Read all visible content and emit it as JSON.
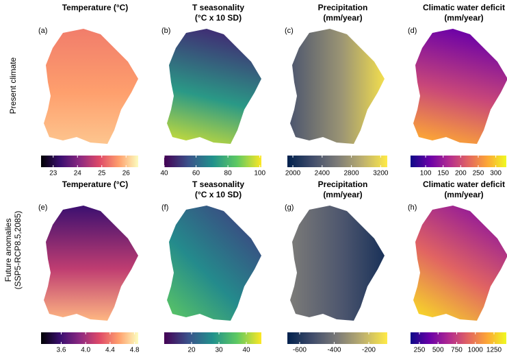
{
  "row_labels": [
    [
      "Present climate"
    ],
    [
      "Future anomalies",
      "(SSP5-RCP8.5,2085)"
    ]
  ],
  "panels": [
    {
      "title": [
        "Temperature (°C)"
      ],
      "letter": "(a)",
      "colorbar": {
        "lim": [
          22.5,
          26.5
        ],
        "ticks": [
          23,
          24,
          25,
          26
        ],
        "colors": [
          "#000004",
          "#3b0f70",
          "#8c2981",
          "#de4968",
          "#fe9f6d",
          "#fcfdbf"
        ]
      }
    },
    {
      "title": [
        "T seasonality",
        "(°C x 10 SD)"
      ],
      "letter": "(b)",
      "colorbar": {
        "lim": [
          40,
          101
        ],
        "ticks": [
          40,
          60,
          80,
          100
        ],
        "colors": [
          "#440154",
          "#3b528b",
          "#21918c",
          "#5ec962",
          "#fde725"
        ]
      }
    },
    {
      "title": [
        "Precipitation",
        "(mm/year)"
      ],
      "letter": "(c)",
      "colorbar": {
        "lim": [
          1925,
          3290
        ],
        "ticks": [
          2000,
          2400,
          2800,
          3200
        ],
        "colors": [
          "#00204d",
          "#414d6b",
          "#7c7b78",
          "#bcaf6f",
          "#ffea46"
        ]
      }
    },
    {
      "title": [
        "Climatic water deficit",
        "(mm/year)"
      ],
      "letter": "(d)",
      "colorbar": {
        "lim": [
          57,
          330
        ],
        "ticks": [
          100,
          150,
          200,
          250,
          300
        ],
        "colors": [
          "#0d0887",
          "#6a00a8",
          "#b12a90",
          "#e16462",
          "#fca636",
          "#f0f921"
        ]
      }
    },
    {
      "title": [
        "Temperature (°C)"
      ],
      "letter": "(e)",
      "colorbar": {
        "lim": [
          3.27,
          4.86
        ],
        "ticks": [
          3.6,
          {
            "value": 4,
            "label": "4.0"
          },
          4.4,
          4.8
        ],
        "colors": [
          "#000004",
          "#3b0f70",
          "#8c2981",
          "#de4968",
          "#fe9f6d",
          "#fcfdbf"
        ]
      }
    },
    {
      "title": [
        "T seasonality",
        "(°C x 10 SD)"
      ],
      "letter": "(f)",
      "colorbar": {
        "lim": [
          10,
          45.5
        ],
        "ticks": [
          20,
          30,
          40
        ],
        "colors": [
          "#440154",
          "#3b528b",
          "#21918c",
          "#5ec962",
          "#fde725"
        ]
      }
    },
    {
      "title": [
        "Precipitation",
        "(mm/year)"
      ],
      "letter": "(g)",
      "colorbar": {
        "lim": [
          -671,
          -93
        ],
        "ticks": [
          -600,
          -400,
          -200
        ],
        "colors": [
          "#00204d",
          "#414d6b",
          "#7c7b78",
          "#bcaf6f",
          "#ffea46"
        ]
      }
    },
    {
      "title": [
        "Climatic water deficit",
        "(mm/year)"
      ],
      "letter": "(h)",
      "colorbar": {
        "lim": [
          131,
          1415
        ],
        "ticks": [
          250,
          500,
          750,
          1000,
          1250
        ],
        "colors": [
          "#0d0887",
          "#6a00a8",
          "#b12a90",
          "#e16462",
          "#fca636",
          "#f0f921"
        ]
      }
    }
  ]
}
